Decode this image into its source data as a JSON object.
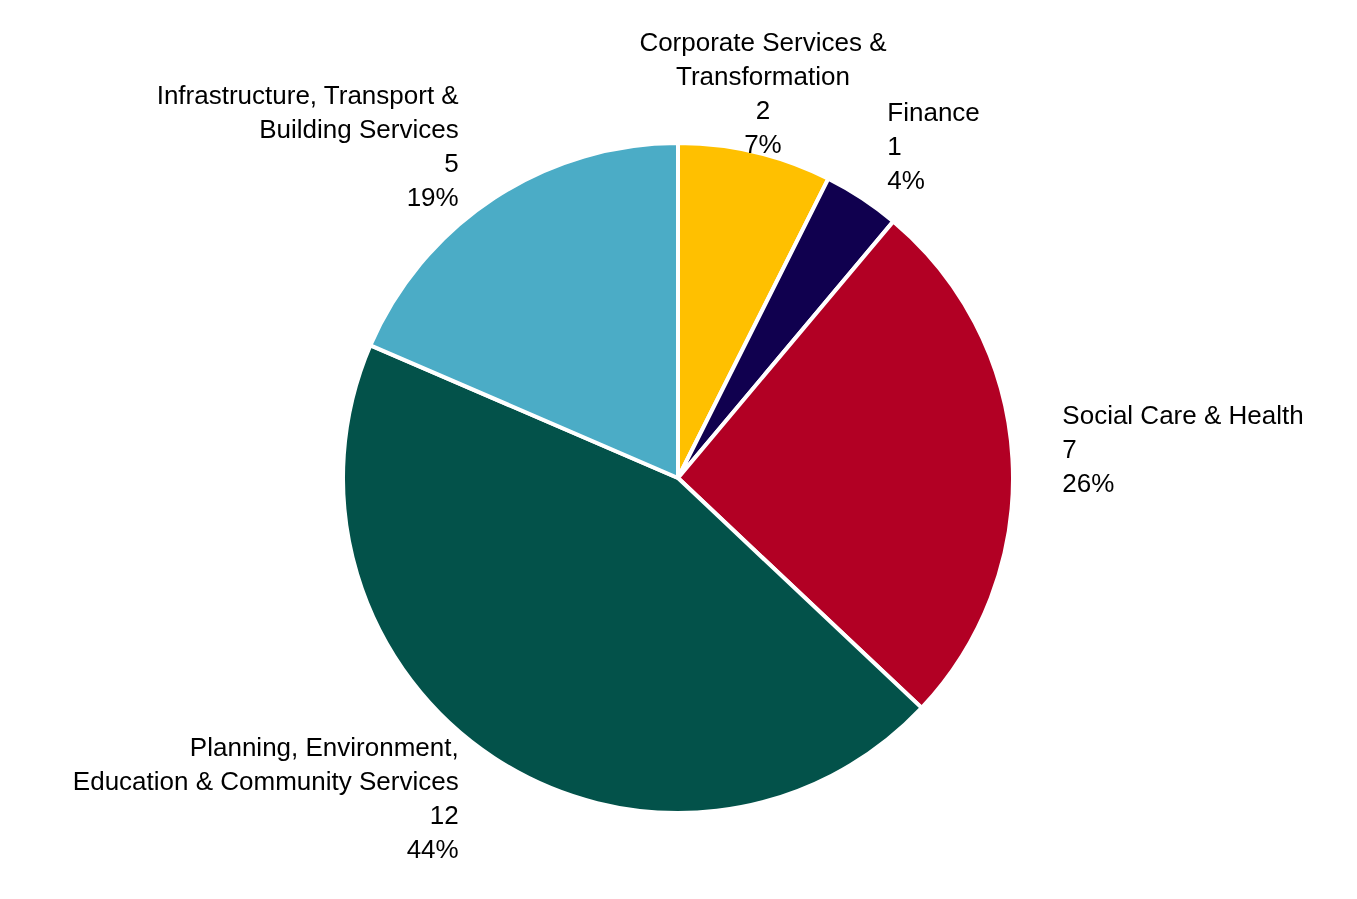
{
  "chart_data": {
    "type": "pie",
    "categories": [
      "Corporate Services & Transformation",
      "Finance",
      "Social Care & Health",
      "Planning, Environment, Education & Community Services",
      "Infrastructure, Transport & Building Services"
    ],
    "values": [
      2,
      1,
      7,
      12,
      5
    ],
    "colors": [
      "#ffc000",
      "#10004f",
      "#b20024",
      "#03524a",
      "#4bacc6"
    ],
    "value_labels": [
      "2\n7%",
      "1\n4%",
      "7\n26%",
      "12\n44%",
      "5\n19%"
    ],
    "legend": false
  }
}
